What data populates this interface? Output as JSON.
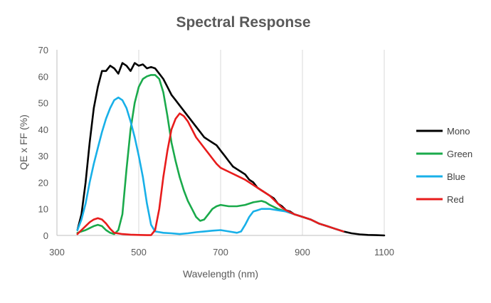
{
  "chart_data": {
    "type": "line",
    "title": "Spectral Response",
    "xlabel": "Wavelength (nm)",
    "ylabel": "QE x FF (%)",
    "xlim": [
      300,
      1100
    ],
    "ylim": [
      0,
      70
    ],
    "xticks": [
      300,
      500,
      700,
      900,
      1100
    ],
    "yticks": [
      0,
      10,
      20,
      30,
      40,
      50,
      60,
      70
    ],
    "x_grid": true,
    "y_grid": false,
    "legend_position": "right",
    "series": [
      {
        "name": "Mono",
        "color": "#000000",
        "points": [
          [
            350,
            2
          ],
          [
            360,
            8
          ],
          [
            370,
            20
          ],
          [
            380,
            35
          ],
          [
            390,
            48
          ],
          [
            400,
            56
          ],
          [
            410,
            62
          ],
          [
            420,
            62
          ],
          [
            430,
            64
          ],
          [
            440,
            63
          ],
          [
            450,
            61
          ],
          [
            460,
            65
          ],
          [
            470,
            64
          ],
          [
            480,
            62
          ],
          [
            490,
            65
          ],
          [
            500,
            64
          ],
          [
            510,
            64.5
          ],
          [
            520,
            63
          ],
          [
            530,
            63.5
          ],
          [
            540,
            63
          ],
          [
            550,
            61
          ],
          [
            560,
            59
          ],
          [
            570,
            56
          ],
          [
            580,
            53
          ],
          [
            590,
            51
          ],
          [
            600,
            49
          ],
          [
            610,
            47
          ],
          [
            620,
            45
          ],
          [
            630,
            43
          ],
          [
            640,
            41
          ],
          [
            650,
            39
          ],
          [
            660,
            37
          ],
          [
            670,
            36
          ],
          [
            680,
            35
          ],
          [
            690,
            34
          ],
          [
            700,
            32
          ],
          [
            710,
            30
          ],
          [
            720,
            28
          ],
          [
            730,
            26
          ],
          [
            740,
            25
          ],
          [
            750,
            24
          ],
          [
            760,
            23
          ],
          [
            770,
            21
          ],
          [
            780,
            20
          ],
          [
            790,
            18
          ],
          [
            800,
            17
          ],
          [
            810,
            16
          ],
          [
            820,
            15
          ],
          [
            830,
            14
          ],
          [
            840,
            12
          ],
          [
            850,
            11
          ],
          [
            860,
            9.5
          ],
          [
            870,
            9
          ],
          [
            880,
            8
          ],
          [
            890,
            7.5
          ],
          [
            900,
            7
          ],
          [
            920,
            6
          ],
          [
            940,
            4.5
          ],
          [
            960,
            3.5
          ],
          [
            980,
            2.5
          ],
          [
            1000,
            1.5
          ],
          [
            1020,
            0.8
          ],
          [
            1040,
            0.4
          ],
          [
            1060,
            0.2
          ],
          [
            1080,
            0.1
          ],
          [
            1100,
            0
          ]
        ]
      },
      {
        "name": "Green",
        "color": "#1aaa4b",
        "points": [
          [
            350,
            1
          ],
          [
            370,
            2
          ],
          [
            390,
            3.5
          ],
          [
            400,
            4
          ],
          [
            410,
            3.5
          ],
          [
            420,
            2
          ],
          [
            430,
            1
          ],
          [
            440,
            0.5
          ],
          [
            450,
            2
          ],
          [
            460,
            8
          ],
          [
            470,
            25
          ],
          [
            480,
            40
          ],
          [
            490,
            50
          ],
          [
            500,
            56
          ],
          [
            510,
            59
          ],
          [
            520,
            60
          ],
          [
            530,
            60.5
          ],
          [
            540,
            60.5
          ],
          [
            550,
            59
          ],
          [
            560,
            54
          ],
          [
            570,
            45
          ],
          [
            580,
            35
          ],
          [
            590,
            28
          ],
          [
            600,
            22
          ],
          [
            610,
            17
          ],
          [
            620,
            13
          ],
          [
            630,
            10
          ],
          [
            640,
            7
          ],
          [
            650,
            5.5
          ],
          [
            660,
            6
          ],
          [
            670,
            8
          ],
          [
            680,
            10
          ],
          [
            690,
            11
          ],
          [
            700,
            11.5
          ],
          [
            720,
            11
          ],
          [
            740,
            11
          ],
          [
            760,
            11.5
          ],
          [
            780,
            12.5
          ],
          [
            800,
            13
          ],
          [
            810,
            12.5
          ],
          [
            820,
            11.5
          ],
          [
            840,
            10
          ],
          [
            860,
            9
          ],
          [
            880,
            8
          ],
          [
            900,
            7
          ],
          [
            920,
            6
          ],
          [
            940,
            4.5
          ],
          [
            960,
            3.5
          ],
          [
            980,
            2.5
          ],
          [
            1000,
            1.5
          ]
        ]
      },
      {
        "name": "Blue",
        "color": "#18b0e8",
        "points": [
          [
            350,
            2
          ],
          [
            360,
            6
          ],
          [
            370,
            12
          ],
          [
            380,
            20
          ],
          [
            390,
            27
          ],
          [
            400,
            33
          ],
          [
            410,
            39
          ],
          [
            420,
            44
          ],
          [
            430,
            48
          ],
          [
            440,
            51
          ],
          [
            450,
            52
          ],
          [
            460,
            51
          ],
          [
            470,
            48
          ],
          [
            480,
            43
          ],
          [
            490,
            37
          ],
          [
            500,
            30
          ],
          [
            510,
            22
          ],
          [
            520,
            12
          ],
          [
            530,
            4
          ],
          [
            540,
            1.5
          ],
          [
            560,
            1
          ],
          [
            580,
            0.8
          ],
          [
            600,
            0.5
          ],
          [
            620,
            0.8
          ],
          [
            640,
            1.2
          ],
          [
            660,
            1.5
          ],
          [
            680,
            1.8
          ],
          [
            700,
            2
          ],
          [
            720,
            1.5
          ],
          [
            740,
            1
          ],
          [
            750,
            1.5
          ],
          [
            760,
            4
          ],
          [
            770,
            7
          ],
          [
            780,
            9
          ],
          [
            790,
            9.5
          ],
          [
            800,
            10
          ],
          [
            820,
            10
          ],
          [
            840,
            9.5
          ],
          [
            860,
            9
          ],
          [
            880,
            8
          ],
          [
            900,
            7
          ],
          [
            920,
            6
          ],
          [
            940,
            4.5
          ],
          [
            960,
            3.5
          ],
          [
            980,
            2.5
          ],
          [
            1000,
            1.5
          ]
        ]
      },
      {
        "name": "Red",
        "color": "#e81c1c",
        "points": [
          [
            350,
            0.5
          ],
          [
            360,
            2
          ],
          [
            370,
            3.5
          ],
          [
            380,
            5
          ],
          [
            390,
            6
          ],
          [
            400,
            6.5
          ],
          [
            410,
            6
          ],
          [
            420,
            4.5
          ],
          [
            430,
            2.5
          ],
          [
            440,
            1
          ],
          [
            460,
            0.5
          ],
          [
            480,
            0.3
          ],
          [
            500,
            0.2
          ],
          [
            520,
            0.1
          ],
          [
            530,
            0.1
          ],
          [
            540,
            2
          ],
          [
            550,
            10
          ],
          [
            560,
            22
          ],
          [
            570,
            32
          ],
          [
            580,
            40
          ],
          [
            590,
            44
          ],
          [
            600,
            46
          ],
          [
            610,
            45
          ],
          [
            620,
            43
          ],
          [
            630,
            40
          ],
          [
            640,
            37
          ],
          [
            650,
            35
          ],
          [
            660,
            33
          ],
          [
            670,
            31
          ],
          [
            680,
            29
          ],
          [
            690,
            27
          ],
          [
            700,
            25.5
          ],
          [
            720,
            24
          ],
          [
            740,
            22.5
          ],
          [
            760,
            21
          ],
          [
            780,
            19
          ],
          [
            800,
            17
          ],
          [
            820,
            15
          ],
          [
            840,
            12
          ],
          [
            850,
            10.5
          ],
          [
            860,
            9.5
          ],
          [
            880,
            8
          ],
          [
            900,
            7
          ],
          [
            920,
            6
          ],
          [
            940,
            4.5
          ],
          [
            960,
            3.5
          ],
          [
            980,
            2.5
          ],
          [
            1000,
            1.5
          ]
        ]
      }
    ]
  }
}
